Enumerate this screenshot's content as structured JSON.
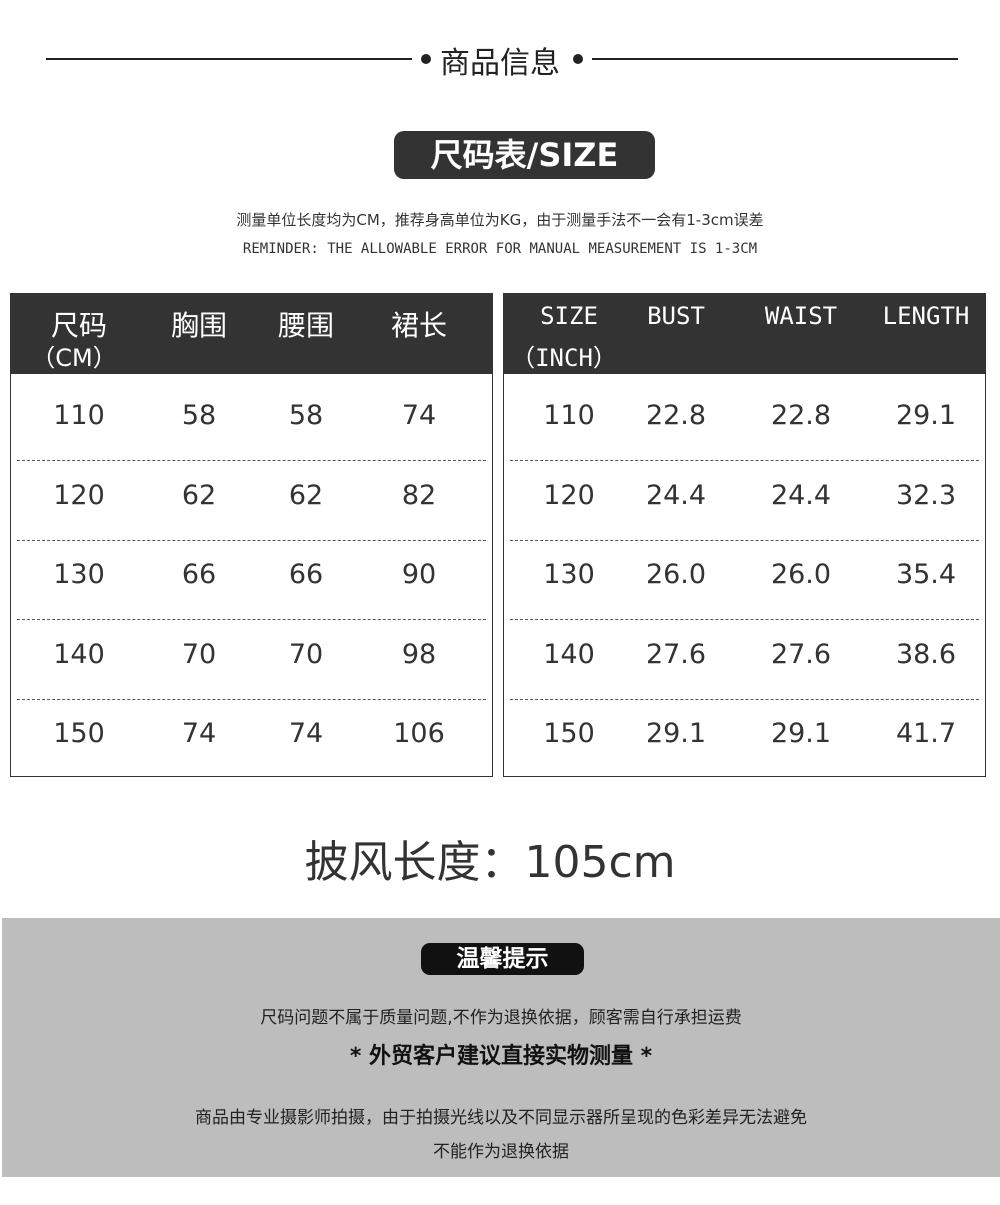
{
  "header": {
    "title": "商品信息"
  },
  "size_badge": "尺码表/SIZE",
  "notes": [
    "测量单位长度均为CM，推荐身高单位为KG，由于测量手法不一会有1-3cm误差",
    "REMINDER: THE ALLOWABLE ERROR FOR MANUAL MEASUREMENT IS 1-3CM"
  ],
  "tables": [
    {
      "headers": [
        "尺码",
        "胸围",
        "腰围",
        "裙长"
      ],
      "unit": "（CM）",
      "rows": [
        [
          "110",
          "58",
          "58",
          "74"
        ],
        [
          "120",
          "62",
          "62",
          "82"
        ],
        [
          "130",
          "66",
          "66",
          "90"
        ],
        [
          "140",
          "70",
          "70",
          "98"
        ],
        [
          "150",
          "74",
          "74",
          "106"
        ]
      ]
    },
    {
      "headers": [
        "SIZE",
        "BUST",
        "WAIST",
        "LENGTH"
      ],
      "unit": "（INCH）",
      "rows": [
        [
          "110",
          "22.8",
          "22.8",
          "29.1"
        ],
        [
          "120",
          "24.4",
          "24.4",
          "32.3"
        ],
        [
          "130",
          "26.0",
          "26.0",
          "35.4"
        ],
        [
          "140",
          "27.6",
          "27.6",
          "38.6"
        ],
        [
          "150",
          "29.1",
          "29.1",
          "41.7"
        ]
      ]
    }
  ],
  "cape": "披风长度：105cm",
  "tips": {
    "badge": "温馨提示",
    "lines": [
      "尺码问题不属于质量问题,不作为退换依据，顾客需自行承担运费",
      "* 外贸客户建议直接实物测量 *",
      "商品由专业摄影师拍摄，由于拍摄光线以及不同显示器所呈现的色彩差异无法避免",
      "不能作为退换依据"
    ]
  }
}
